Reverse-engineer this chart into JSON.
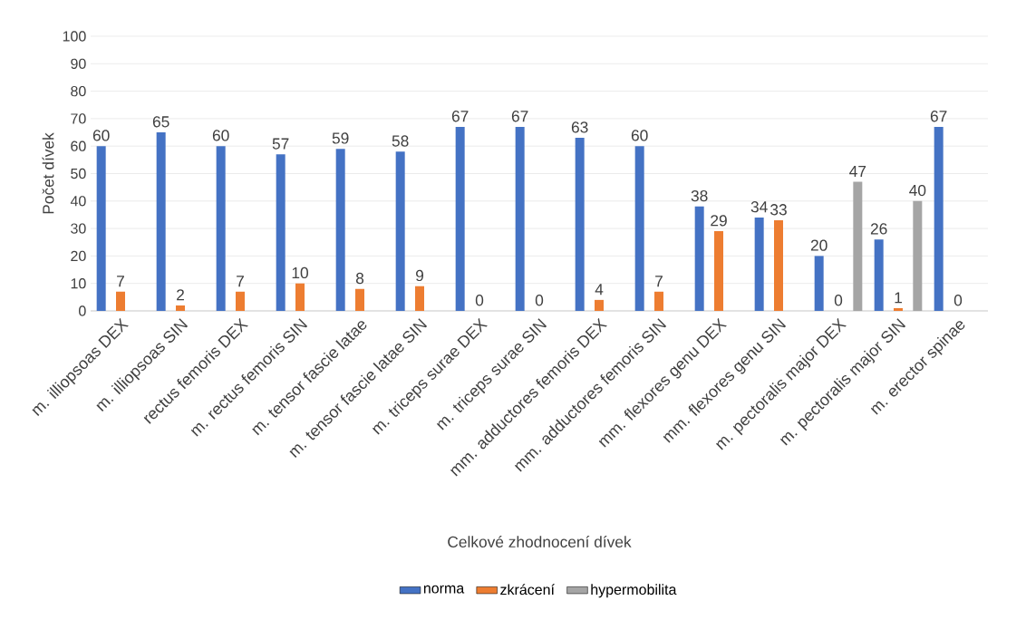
{
  "chart_data": {
    "type": "bar",
    "xlabel": "Celkové zhodnocení dívek",
    "ylabel": "Počet dívek",
    "categories": [
      "m. illiopsoas DEX",
      "m. illiopsoas SIN",
      "rectus femoris DEX",
      "m. rectus femoris SIN",
      "m. tensor fascie latae",
      "m. tensor fascie latae SIN",
      "m. triceps surae DEX",
      "m. triceps surae SIN",
      "mm. adductores femoris DEX",
      "mm. adductores femoris SIN",
      "mm. flexores genu DEX",
      "mm. flexores genu SIN",
      "m. pectoralis major DEX",
      "m. pectoralis major SIN",
      "m. erector spinae"
    ],
    "series": [
      {
        "name": "norma",
        "color": "#4472c4",
        "values": [
          60,
          65,
          60,
          57,
          59,
          58,
          67,
          67,
          63,
          60,
          38,
          34,
          20,
          26,
          67
        ]
      },
      {
        "name": "zkrácení",
        "color": "#ed7d31",
        "values": [
          7,
          2,
          7,
          10,
          8,
          9,
          0,
          0,
          4,
          7,
          29,
          33,
          0,
          1,
          0
        ]
      },
      {
        "name": "hypermobilita",
        "color": "#a5a5a5",
        "values": [
          null,
          null,
          null,
          null,
          null,
          null,
          null,
          null,
          null,
          null,
          null,
          null,
          47,
          40,
          null
        ]
      }
    ],
    "ylim": [
      0,
      100
    ],
    "yticks": [
      0,
      10,
      20,
      30,
      40,
      50,
      60,
      70,
      80,
      90,
      100
    ],
    "grid": "y",
    "legend": "bottom",
    "data_labels": true
  }
}
